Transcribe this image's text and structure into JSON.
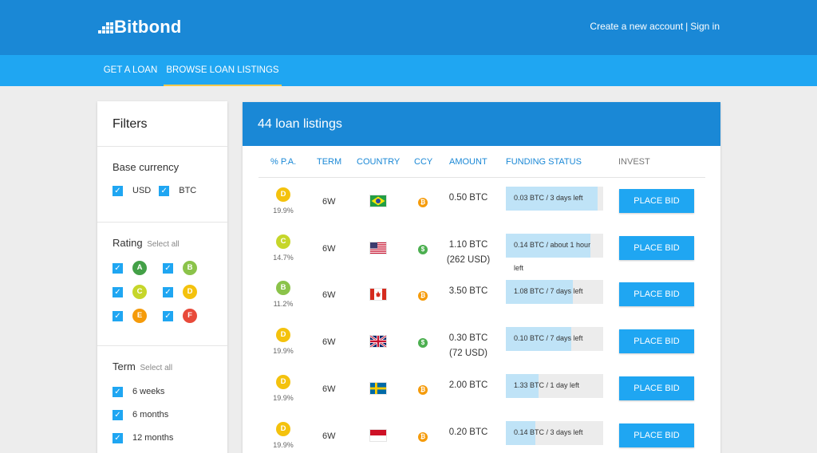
{
  "header": {
    "brand": "Bitbond",
    "create_account": "Create a new account",
    "separator": "|",
    "sign_in": "Sign in"
  },
  "nav": {
    "tabs": [
      {
        "label": "GET A LOAN",
        "active": false
      },
      {
        "label": "BROWSE LOAN LISTINGS",
        "active": true
      }
    ]
  },
  "filters": {
    "title": "Filters",
    "base_currency": {
      "heading": "Base currency",
      "options": [
        {
          "label": "USD",
          "checked": true
        },
        {
          "label": "BTC",
          "checked": true
        }
      ]
    },
    "rating": {
      "heading": "Rating",
      "select_all": "Select all",
      "grades": [
        {
          "grade": "A",
          "checked": true,
          "color": "#43a047"
        },
        {
          "grade": "B",
          "checked": true,
          "color": "#8bc34a"
        },
        {
          "grade": "C",
          "checked": true,
          "color": "#c6d62a"
        },
        {
          "grade": "D",
          "checked": true,
          "color": "#f4c20d"
        },
        {
          "grade": "E",
          "checked": true,
          "color": "#f59b0a"
        },
        {
          "grade": "F",
          "checked": true,
          "color": "#e84a3a"
        }
      ]
    },
    "term": {
      "heading": "Term",
      "select_all": "Select all",
      "options": [
        {
          "label": "6 weeks",
          "checked": true
        },
        {
          "label": "6 months",
          "checked": true
        },
        {
          "label": "12 months",
          "checked": true
        }
      ]
    }
  },
  "listings": {
    "title": "44 loan listings",
    "columns": [
      "% P.A.",
      "TERM",
      "COUNTRY",
      "CCY",
      "AMOUNT",
      "FUNDING STATUS",
      "INVEST"
    ],
    "bid_label": "PLACE BID",
    "rows": [
      {
        "grade": "D",
        "grade_color": "#f4c20d",
        "rate": "19.9%",
        "term": "6W",
        "country": "brazil-flag",
        "ccy": "btc",
        "amount_1": "0.50 BTC",
        "amount_2": "",
        "funded": 0.94,
        "status": "0.03 BTC / 3 days left",
        "status_2": ""
      },
      {
        "grade": "C",
        "grade_color": "#c6d62a",
        "rate": "14.7%",
        "term": "6W",
        "country": "usa-flag",
        "ccy": "usd",
        "amount_1": "1.10 BTC",
        "amount_2": "(262 USD)",
        "funded": 0.87,
        "status": "0.14 BTC / about 1 hour",
        "status_2": "left"
      },
      {
        "grade": "B",
        "grade_color": "#8bc34a",
        "rate": "11.2%",
        "term": "6W",
        "country": "canada-flag",
        "ccy": "btc",
        "amount_1": "3.50 BTC",
        "amount_2": "",
        "funded": 0.69,
        "status": "1.08 BTC / 7 days left",
        "status_2": ""
      },
      {
        "grade": "D",
        "grade_color": "#f4c20d",
        "rate": "19.9%",
        "term": "6W",
        "country": "uk-flag",
        "ccy": "usd",
        "amount_1": "0.30 BTC",
        "amount_2": "(72 USD)",
        "funded": 0.67,
        "status": "0.10 BTC / 7 days left",
        "status_2": ""
      },
      {
        "grade": "D",
        "grade_color": "#f4c20d",
        "rate": "19.9%",
        "term": "6W",
        "country": "sweden-flag",
        "ccy": "btc",
        "amount_1": "2.00 BTC",
        "amount_2": "",
        "funded": 0.34,
        "status": "1.33 BTC / 1 day left",
        "status_2": ""
      },
      {
        "grade": "D",
        "grade_color": "#f4c20d",
        "rate": "19.9%",
        "term": "6W",
        "country": "indonesia-flag",
        "ccy": "btc",
        "amount_1": "0.20 BTC",
        "amount_2": "",
        "funded": 0.3,
        "status": "0.14 BTC / 3 days left",
        "status_2": ""
      }
    ]
  },
  "colors": {
    "header": "#1a88d6",
    "nav": "#1fa6f2",
    "button": "#1fa6f2",
    "progress": "#bfe3f7",
    "btc_coin": "#f59b0a",
    "usd_coin": "#4caf50"
  }
}
